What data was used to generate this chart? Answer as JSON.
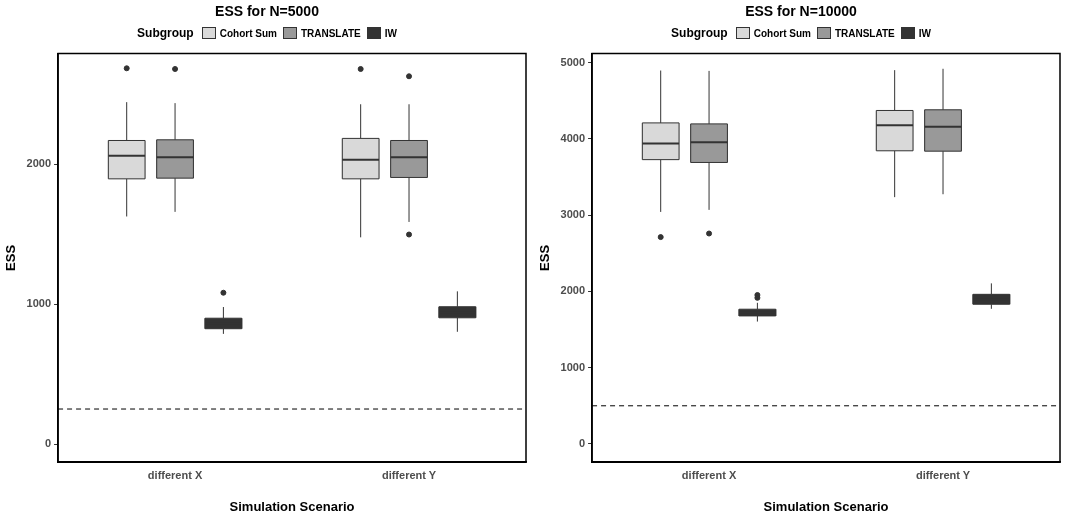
{
  "chart_data": [
    {
      "type": "box",
      "title": "ESS for N=5000",
      "xlabel": "Simulation Scenario",
      "ylabel": "ESS",
      "legend_title": "Subgroup",
      "legend": "top",
      "grid": false,
      "categories": [
        "different X",
        "different Y"
      ],
      "ylim": [
        -130,
        2790
      ],
      "yticks": [
        0,
        1000,
        2000
      ],
      "ref_lines": [
        {
          "axis": "y",
          "value": 250,
          "line_style": "dashed",
          "color": "#000000"
        }
      ],
      "series": [
        {
          "name": "Cohort Sum",
          "color": "#d9d9d9",
          "boxes": [
            {
              "low": 1626,
              "q1": 1895,
              "median": 2060,
              "q3": 2169,
              "high": 2443,
              "outliers": [
                2685
              ]
            },
            {
              "low": 1477,
              "q1": 1895,
              "median": 2032,
              "q3": 2184,
              "high": 2428,
              "outliers": [
                2680
              ]
            }
          ]
        },
        {
          "name": "TRANSLATE",
          "color": "#999999",
          "boxes": [
            {
              "low": 1659,
              "q1": 1900,
              "median": 2050,
              "q3": 2174,
              "high": 2436,
              "outliers": [
                2680
              ]
            },
            {
              "low": 1587,
              "q1": 1905,
              "median": 2050,
              "q3": 2169,
              "high": 2428,
              "outliers": [
                2628,
                1497
              ]
            }
          ]
        },
        {
          "name": "IW",
          "color": "#333333",
          "boxes": [
            {
              "low": 787,
              "q1": 824,
              "median": 859,
              "q3": 899,
              "high": 979,
              "outliers": [
                1081
              ]
            },
            {
              "low": 802,
              "q1": 902,
              "median": 941,
              "q3": 981,
              "high": 1091
            }
          ]
        }
      ]
    },
    {
      "type": "box",
      "title": "ESS for N=10000",
      "xlabel": "Simulation Scenario",
      "ylabel": "ESS",
      "legend_title": "Subgroup",
      "legend": "top",
      "grid": false,
      "categories": [
        "different X",
        "different Y"
      ],
      "ylim": [
        -240,
        5120
      ],
      "yticks": [
        0,
        1000,
        2000,
        3000,
        4000,
        5000
      ],
      "ref_lines": [
        {
          "axis": "y",
          "value": 500,
          "line_style": "dashed",
          "color": "#000000"
        }
      ],
      "series": [
        {
          "name": "Cohort Sum",
          "color": "#d9d9d9",
          "boxes": [
            {
              "low": 3043,
              "q1": 3729,
              "median": 3942,
              "q3": 4211,
              "high": 4898,
              "outliers": [
                2713
              ]
            },
            {
              "low": 3237,
              "q1": 3845,
              "median": 4179,
              "q3": 4374,
              "high": 4903
            }
          ]
        },
        {
          "name": "TRANSLATE",
          "color": "#999999",
          "boxes": [
            {
              "low": 3070,
              "q1": 3692,
              "median": 3956,
              "q3": 4198,
              "high": 4893,
              "outliers": [
                2760
              ]
            },
            {
              "low": 3275,
              "q1": 3840,
              "median": 4160,
              "q3": 4383,
              "high": 4921
            }
          ]
        },
        {
          "name": "IW",
          "color": "#333333",
          "boxes": [
            {
              "low": 1605,
              "q1": 1679,
              "median": 1721,
              "q3": 1767,
              "high": 1851,
              "outliers": [
                1953,
                1916
              ]
            },
            {
              "low": 1772,
              "q1": 1832,
              "median": 1897,
              "q3": 1962,
              "high": 2106
            }
          ]
        }
      ]
    }
  ]
}
